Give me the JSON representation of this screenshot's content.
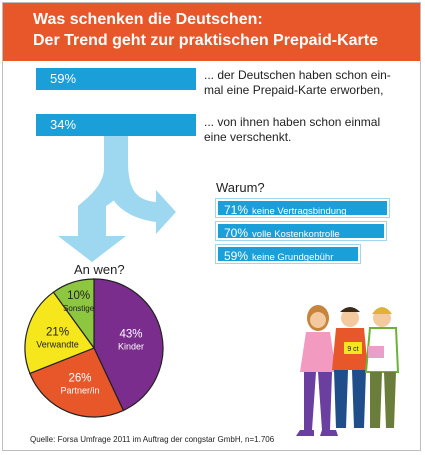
{
  "header": {
    "line1": "Was schenken die Deutschen:",
    "line2": "Der Trend geht zur praktischen Prepaid-Karte"
  },
  "stats": [
    {
      "value": "59%",
      "text_line1": "... der Deutschen haben schon ein-",
      "text_line2": "mal eine Prepaid-Karte erworben,"
    },
    {
      "value": "34%",
      "text_line1": "... von ihnen haben schon einmal",
      "text_line2": "eine verschenkt."
    }
  ],
  "warum": {
    "title": "Warum?",
    "reasons": [
      {
        "pct": "71%",
        "label": "keine Vertragsbindung",
        "value": 71
      },
      {
        "pct": "70%",
        "label": "volle Kostenkontrolle",
        "value": 70
      },
      {
        "pct": "59%",
        "label": "keine Grundgebühr",
        "value": 59
      }
    ]
  },
  "chart_data": {
    "type": "pie",
    "title": "An wen?",
    "slices": [
      {
        "label": "Kinder",
        "value": 43,
        "display": "43%",
        "color": "#7b2d8e"
      },
      {
        "label": "Partner/in",
        "value": 26,
        "display": "26%",
        "color": "#e8572a"
      },
      {
        "label": "Verwandte",
        "value": 21,
        "display": "21%",
        "color": "#f5e71c"
      },
      {
        "label": "Sonstige",
        "value": 10,
        "display": "10%",
        "color": "#8dc63f"
      }
    ]
  },
  "source": "Quelle: Forsa Umfrage 2011 im Auftrag der congstar GmbH, n=1.706",
  "colors": {
    "header": "#e8572a",
    "accent_blue": "#1a9fd8",
    "arrow_blue": "#9ed8f0"
  },
  "illustration": {
    "card_label": "9 ct"
  }
}
